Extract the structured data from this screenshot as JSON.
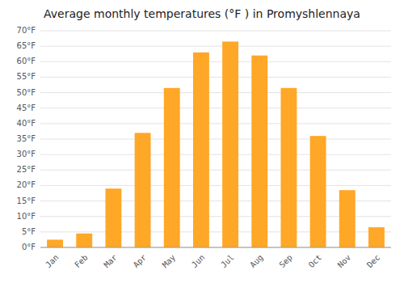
{
  "chart_data": {
    "type": "bar",
    "title": "Average monthly temperatures (°F ) in Promyshlennaya",
    "categories": [
      "Jan",
      "Feb",
      "Mar",
      "Apr",
      "May",
      "Jun",
      "Jul",
      "Aug",
      "Sep",
      "Oct",
      "Nov",
      "Dec"
    ],
    "values": [
      2.5,
      4.5,
      19,
      37,
      51.5,
      63,
      66.5,
      62,
      51.5,
      36,
      18.5,
      6.5
    ],
    "color": "#FFA726",
    "ylim": [
      0,
      70
    ],
    "yticks": [
      {
        "value": 0,
        "label": "0°F"
      },
      {
        "value": 5,
        "label": "5°F"
      },
      {
        "value": 10,
        "label": "10°F"
      },
      {
        "value": 15,
        "label": "15°F"
      },
      {
        "value": 20,
        "label": "20°F"
      },
      {
        "value": 25,
        "label": "25°F"
      },
      {
        "value": 30,
        "label": "30°F"
      },
      {
        "value": 35,
        "label": "35°F"
      },
      {
        "value": 40,
        "label": "40°F"
      },
      {
        "value": 45,
        "label": "45°F"
      },
      {
        "value": 50,
        "label": "50°F"
      },
      {
        "value": 55,
        "label": "55°F"
      },
      {
        "value": 60,
        "label": "60°F"
      },
      {
        "value": 65,
        "label": "65°F"
      },
      {
        "value": 70,
        "label": "70°F"
      }
    ],
    "grid": true
  }
}
